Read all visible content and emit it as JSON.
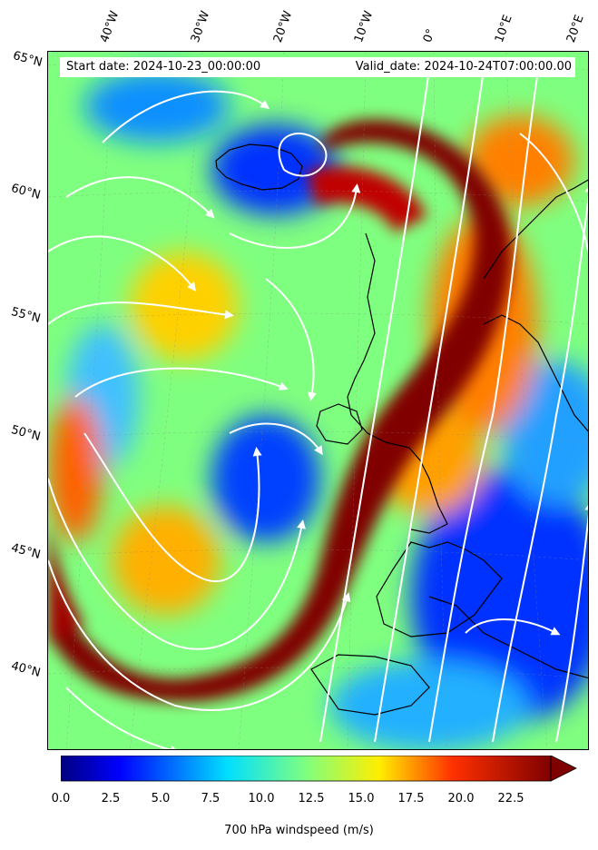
{
  "header": {
    "start_date": "Start date: 2024-10-23_00:00:00",
    "valid_date": "Valid_date: 2024-10-24T07:00:00.00"
  },
  "longitude_labels": [
    "40°W",
    "30°W",
    "20°W",
    "10°W",
    "0°",
    "10°E",
    "20°E"
  ],
  "latitude_labels": [
    "65°N",
    "60°N",
    "55°N",
    "50°N",
    "45°N",
    "40°N"
  ],
  "colorbar": {
    "label": "700 hPa windspeed (m/s)",
    "ticks": [
      "0.0",
      "2.5",
      "5.0",
      "7.5",
      "10.0",
      "12.5",
      "15.0",
      "17.5",
      "20.0",
      "22.5"
    ],
    "min": 0,
    "max": 25,
    "extend": "max",
    "colormap": "jet"
  },
  "map": {
    "field": "700 hPa windspeed",
    "units": "m/s",
    "overlay": "streamlines",
    "streamline_color": "#ffffff",
    "coastline_color": "#000000",
    "jet_color": "#800000",
    "background_color": "#7fff7f"
  }
}
